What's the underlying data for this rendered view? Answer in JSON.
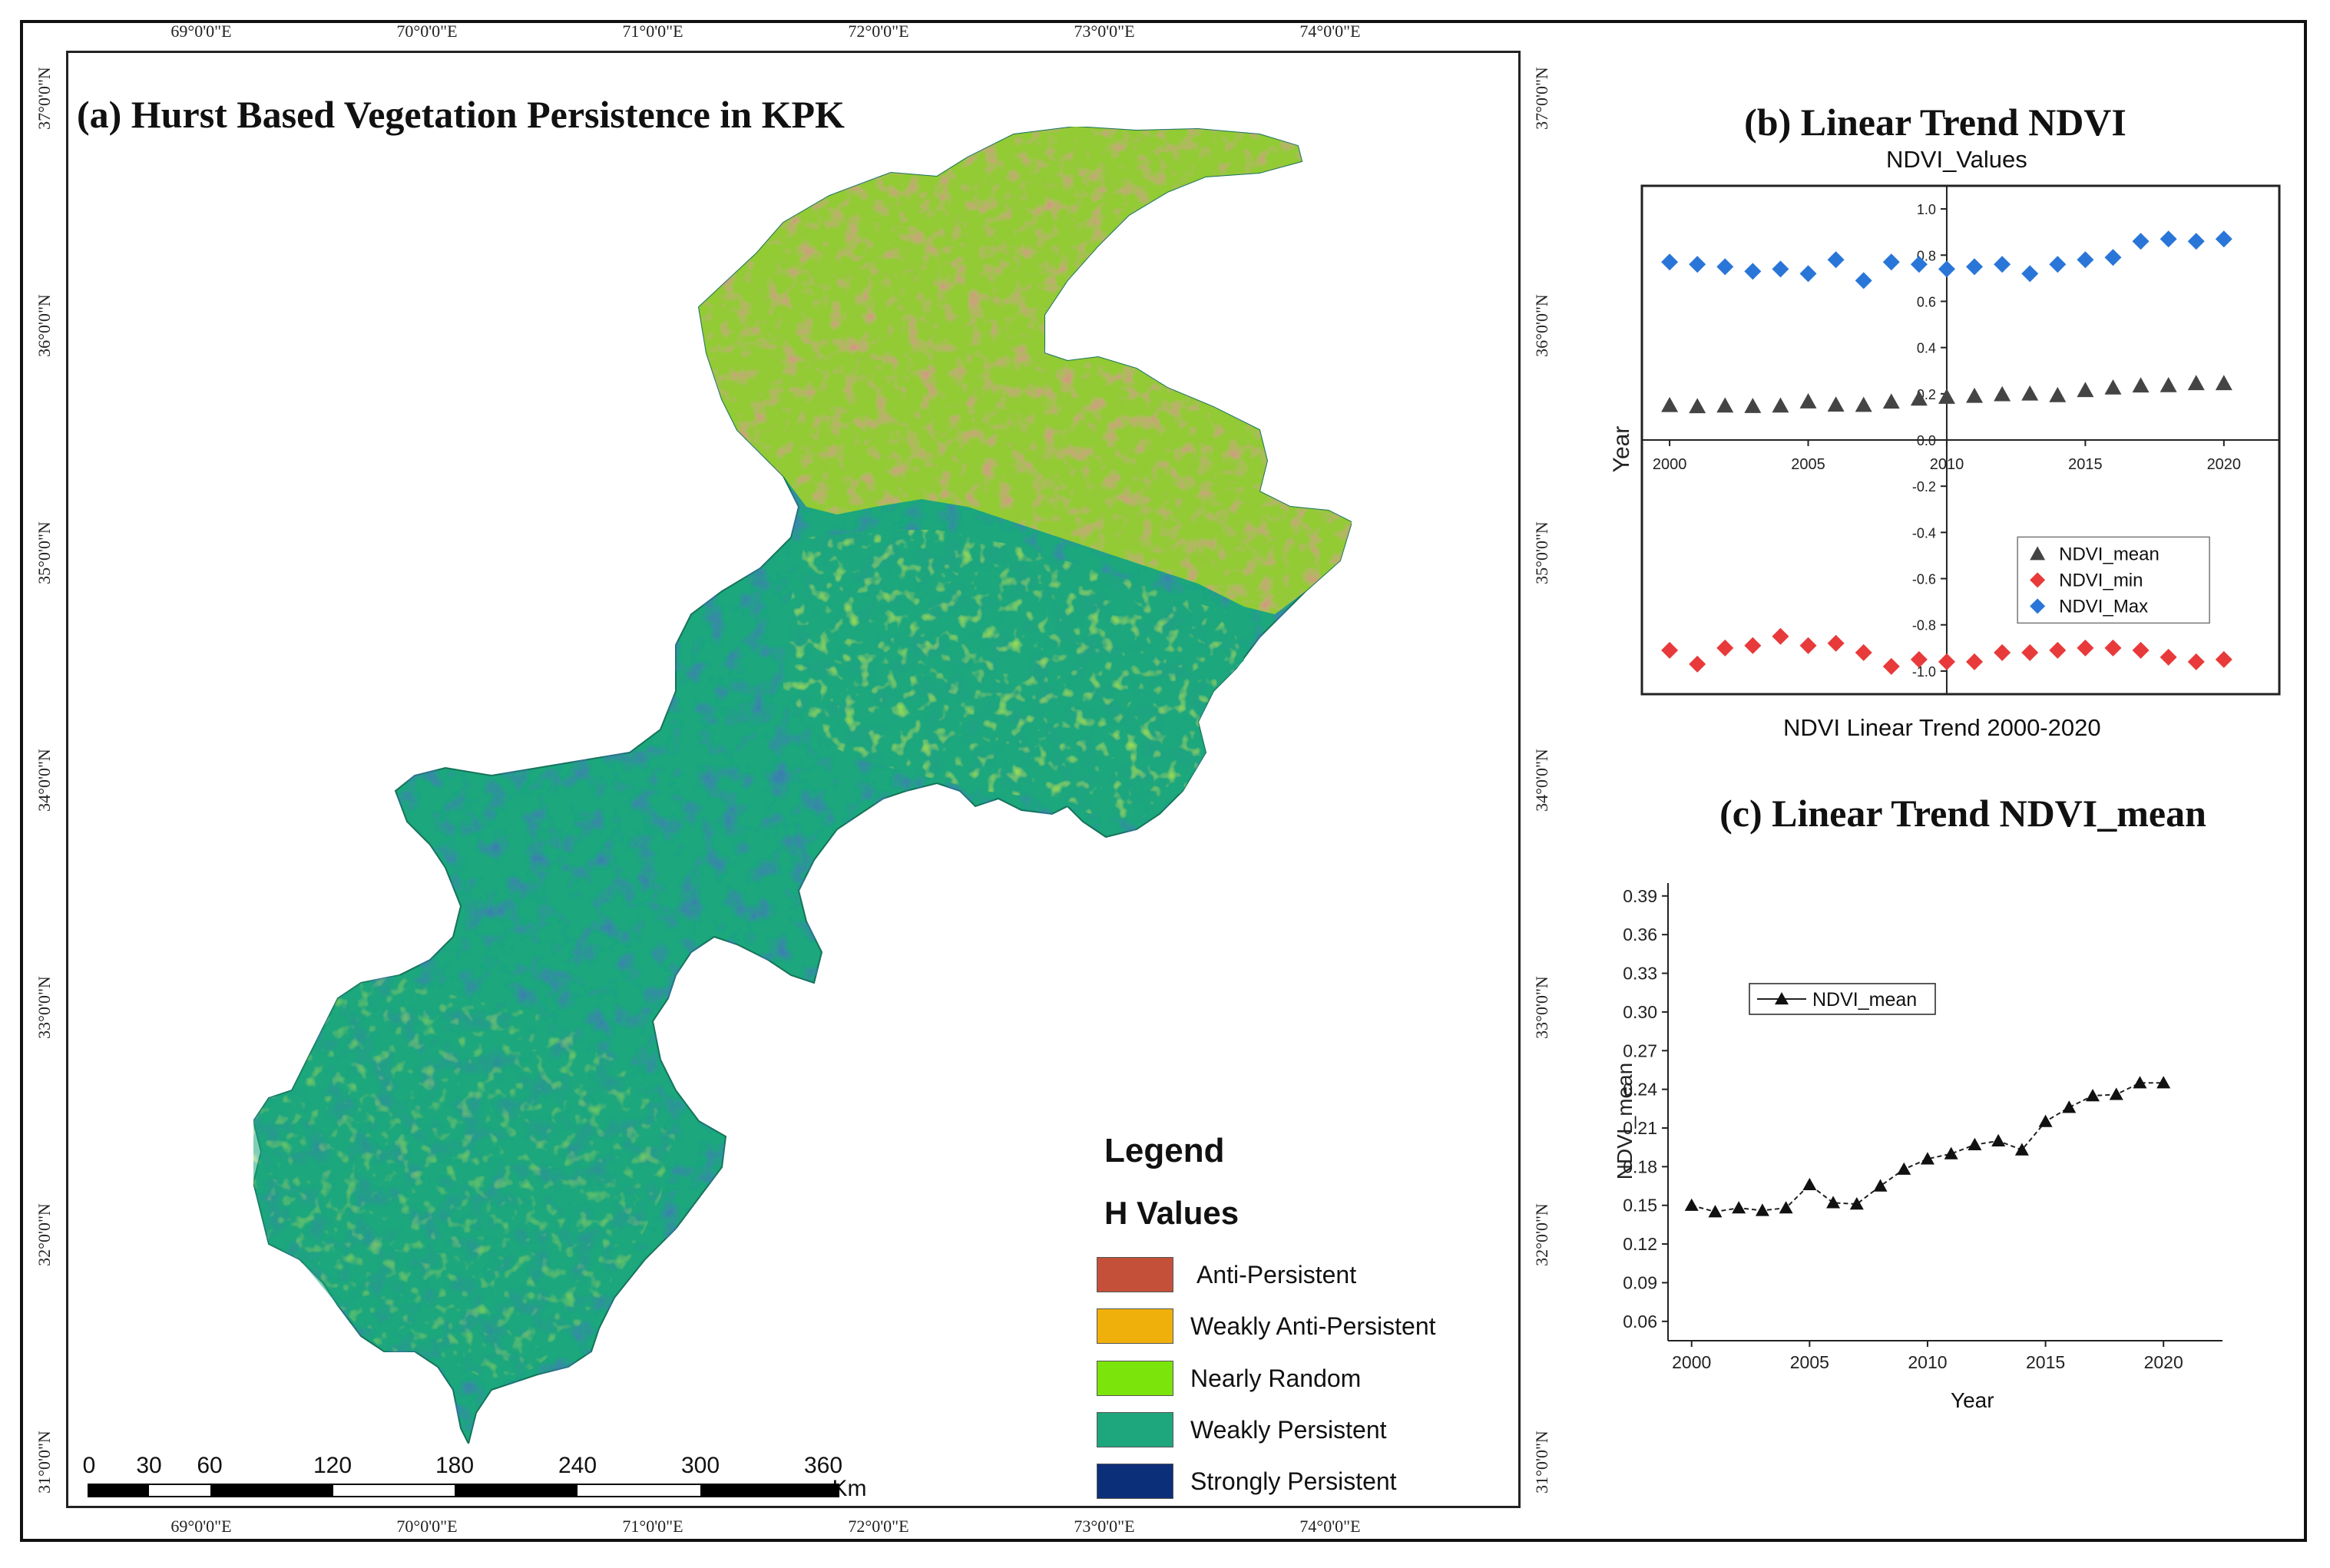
{
  "map": {
    "title": "(a) Hurst Based Vegetation Persistence in KPK",
    "lon_labels": [
      "69°0'0\"E",
      "70°0'0\"E",
      "71°0'0\"E",
      "72°0'0\"E",
      "73°0'0\"E",
      "74°0'0\"E"
    ],
    "lat_labels": [
      "37°0'0\"N",
      "36°0'0\"N",
      "35°0'0\"N",
      "34°0'0\"N",
      "33°0'0\"N",
      "32°0'0\"N",
      "31°0'0\"N"
    ],
    "legend": {
      "title": "Legend",
      "subtitle": "H Values",
      "items": [
        {
          "label": "Anti-Persistent",
          "color": "#c4503a"
        },
        {
          "label": "Weakly Anti-Persistent",
          "color": "#f0b00c"
        },
        {
          "label": "Nearly Random",
          "color": "#7be40a"
        },
        {
          "label": "Weakly Persistent",
          "color": "#1ea77d"
        },
        {
          "label": "Strongly Persistent",
          "color": "#0c2f7a"
        }
      ]
    },
    "scale_bar": {
      "ticks": [
        "0",
        "30",
        "60",
        "120",
        "180",
        "240",
        "300",
        "360"
      ],
      "unit": "Km"
    }
  },
  "chart_data": [
    {
      "type": "scatter",
      "panel_title": "(b) Linear Trend NDVI",
      "title": "NDVI_Values",
      "xlabel": "NDVI Linear Trend 2000-2020",
      "ylabel": "Year",
      "xlim": [
        1999,
        2022
      ],
      "ylim": [
        -1.1,
        1.1
      ],
      "x_ticks": [
        "2000",
        "2005",
        "2010",
        "2015",
        "2020"
      ],
      "y_ticks": [
        "1.0",
        "0.8",
        "0.6",
        "0.4",
        "0.2",
        "0.0",
        "-0.2",
        "-0.4",
        "-0.6",
        "-0.8",
        "-1.0"
      ],
      "x": [
        2000,
        2001,
        2002,
        2003,
        2004,
        2005,
        2006,
        2007,
        2008,
        2009,
        2010,
        2011,
        2012,
        2013,
        2014,
        2015,
        2016,
        2017,
        2018,
        2019,
        2020
      ],
      "series": [
        {
          "name": "NDVI_mean",
          "marker": "triangle",
          "color": "#444444",
          "values": [
            0.15,
            0.145,
            0.148,
            0.146,
            0.148,
            0.166,
            0.152,
            0.151,
            0.165,
            0.178,
            0.186,
            0.19,
            0.197,
            0.2,
            0.193,
            0.215,
            0.226,
            0.235,
            0.236,
            0.245,
            0.245
          ]
        },
        {
          "name": "NDVI_min",
          "marker": "diamond",
          "color": "#e83a3a",
          "values": [
            -0.91,
            -0.97,
            -0.9,
            -0.89,
            -0.85,
            -0.89,
            -0.88,
            -0.92,
            -0.98,
            -0.95,
            -0.96,
            -0.96,
            -0.92,
            -0.92,
            -0.91,
            -0.9,
            -0.9,
            -0.91,
            -0.94,
            -0.96,
            -0.95
          ]
        },
        {
          "name": "NDVI_Max",
          "marker": "diamond",
          "color": "#2a76d8",
          "values": [
            0.77,
            0.76,
            0.75,
            0.73,
            0.74,
            0.72,
            0.78,
            0.69,
            0.77,
            0.76,
            0.74,
            0.75,
            0.76,
            0.72,
            0.76,
            0.78,
            0.79,
            0.86,
            0.87,
            0.86,
            0.87
          ]
        }
      ]
    },
    {
      "type": "line",
      "panel_title": "(c) Linear Trend NDVI_mean",
      "title": "",
      "xlabel": "Year",
      "ylabel": "NDVI_mean",
      "xlim": [
        1999,
        2022.5
      ],
      "ylim": [
        0.045,
        0.4
      ],
      "x_ticks": [
        "2000",
        "2005",
        "2010",
        "2015",
        "2020"
      ],
      "y_ticks": [
        "0.06",
        "0.09",
        "0.12",
        "0.15",
        "0.18",
        "0.21",
        "0.24",
        "0.27",
        "0.30",
        "0.33",
        "0.36",
        "0.39"
      ],
      "x": [
        2000,
        2001,
        2002,
        2003,
        2004,
        2005,
        2006,
        2007,
        2008,
        2009,
        2010,
        2011,
        2012,
        2013,
        2014,
        2015,
        2016,
        2017,
        2018,
        2019,
        2020
      ],
      "series": [
        {
          "name": "NDVI_mean",
          "marker": "triangle",
          "color": "#111111",
          "values": [
            0.15,
            0.145,
            0.148,
            0.146,
            0.148,
            0.166,
            0.152,
            0.151,
            0.165,
            0.178,
            0.186,
            0.19,
            0.197,
            0.2,
            0.193,
            0.215,
            0.226,
            0.235,
            0.236,
            0.245,
            0.245
          ]
        }
      ]
    }
  ]
}
